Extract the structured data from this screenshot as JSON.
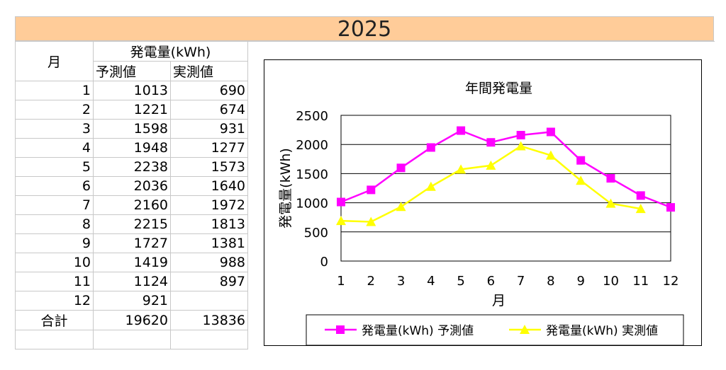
{
  "sheet_title": "2025",
  "table": {
    "header_month": "月",
    "header_group": "発電量(kWh)",
    "header_forecast": "予測値",
    "header_actual": "実測値",
    "rows": [
      {
        "month": "1",
        "forecast": "1013",
        "actual": "690"
      },
      {
        "month": "2",
        "forecast": "1221",
        "actual": "674"
      },
      {
        "month": "3",
        "forecast": "1598",
        "actual": "931"
      },
      {
        "month": "4",
        "forecast": "1948",
        "actual": "1277"
      },
      {
        "month": "5",
        "forecast": "2238",
        "actual": "1573"
      },
      {
        "month": "6",
        "forecast": "2036",
        "actual": "1640"
      },
      {
        "month": "7",
        "forecast": "2160",
        "actual": "1972"
      },
      {
        "month": "8",
        "forecast": "2215",
        "actual": "1813"
      },
      {
        "month": "9",
        "forecast": "1727",
        "actual": "1381"
      },
      {
        "month": "10",
        "forecast": "1419",
        "actual": "988"
      },
      {
        "month": "11",
        "forecast": "1124",
        "actual": "897"
      },
      {
        "month": "12",
        "forecast": "921",
        "actual": ""
      }
    ],
    "total_label": "合計",
    "total_forecast": "19620",
    "total_actual": "13836"
  },
  "chart_data": {
    "type": "line",
    "title": "年間発電量",
    "xlabel": "月",
    "ylabel": "発電量(kWh)",
    "categories": [
      "1",
      "2",
      "3",
      "4",
      "5",
      "6",
      "7",
      "8",
      "9",
      "10",
      "11",
      "12"
    ],
    "ylim": [
      0,
      2500
    ],
    "yticks": [
      0,
      500,
      1000,
      1500,
      2000,
      2500
    ],
    "grid": true,
    "legend": "bottom",
    "series": [
      {
        "name": "発電量(kWh) 予測値",
        "color": "#FF00FF",
        "marker": "square",
        "values": [
          1013,
          1221,
          1598,
          1948,
          2238,
          2036,
          2160,
          2215,
          1727,
          1419,
          1124,
          921
        ]
      },
      {
        "name": "発電量(kWh) 実測値",
        "color": "#FFFF00",
        "marker": "triangle",
        "values": [
          690,
          674,
          931,
          1277,
          1573,
          1640,
          1972,
          1813,
          1381,
          988,
          897,
          null
        ]
      }
    ]
  }
}
